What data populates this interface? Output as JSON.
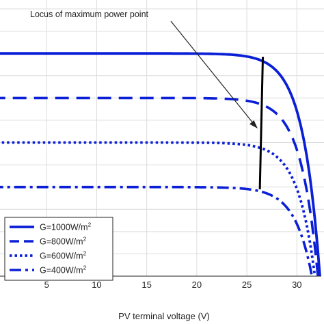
{
  "chart_data": {
    "type": "line",
    "title": "",
    "xlabel": "PV terminal voltage (V)",
    "ylabel": "",
    "xlim": [
      0,
      32.3
    ],
    "ylim": [
      0,
      1.24
    ],
    "xticks": [
      5,
      10,
      15,
      20,
      25,
      30
    ],
    "grid": true,
    "legend_position": "bottom-left",
    "annotation": "Locus of maximum power point",
    "colors": {
      "series": "#0a1fd6",
      "locus": "#000000",
      "grid": "#dcdcdc"
    },
    "series": [
      {
        "name": "G=1000W/m²",
        "legend_label": "G=1000W/m",
        "legend_sup": "2",
        "dash": "solid",
        "isc": 1.0,
        "voc": 32.3,
        "voltage": [
          0,
          15,
          22,
          25,
          26.5,
          28,
          29.5,
          31,
          32.3
        ],
        "current": [
          1.0,
          1.0,
          0.995,
          0.98,
          0.95,
          0.86,
          0.68,
          0.4,
          0.0
        ]
      },
      {
        "name": "G=800W/m²",
        "legend_label": "G=800W/m",
        "legend_sup": "2",
        "dash": "dashed",
        "isc": 0.8,
        "voc": 32.1,
        "voltage": [
          0,
          15,
          22,
          25,
          26.5,
          28,
          29.5,
          31,
          32.1
        ],
        "current": [
          0.8,
          0.8,
          0.796,
          0.784,
          0.76,
          0.69,
          0.55,
          0.32,
          0.0
        ]
      },
      {
        "name": "G=600W/m²",
        "legend_label": "G=600W/m",
        "legend_sup": "2",
        "dash": "dotted",
        "isc": 0.6,
        "voc": 31.8,
        "voltage": [
          0,
          15,
          22,
          25,
          26.5,
          28,
          29.5,
          31,
          31.8
        ],
        "current": [
          0.6,
          0.6,
          0.597,
          0.587,
          0.57,
          0.51,
          0.4,
          0.2,
          0.0
        ]
      },
      {
        "name": "G=400W/m²",
        "legend_label": "G=400W/m",
        "legend_sup": "2",
        "dash": "dashdot",
        "isc": 0.4,
        "voc": 31.5,
        "voltage": [
          0,
          15,
          22,
          25,
          26.5,
          28,
          29.5,
          31,
          31.5
        ],
        "current": [
          0.4,
          0.4,
          0.398,
          0.391,
          0.378,
          0.34,
          0.26,
          0.1,
          0.0
        ]
      }
    ],
    "mpp_locus": {
      "voltage": [
        26.3,
        26.6
      ],
      "current": [
        0.39,
        0.985
      ]
    }
  }
}
